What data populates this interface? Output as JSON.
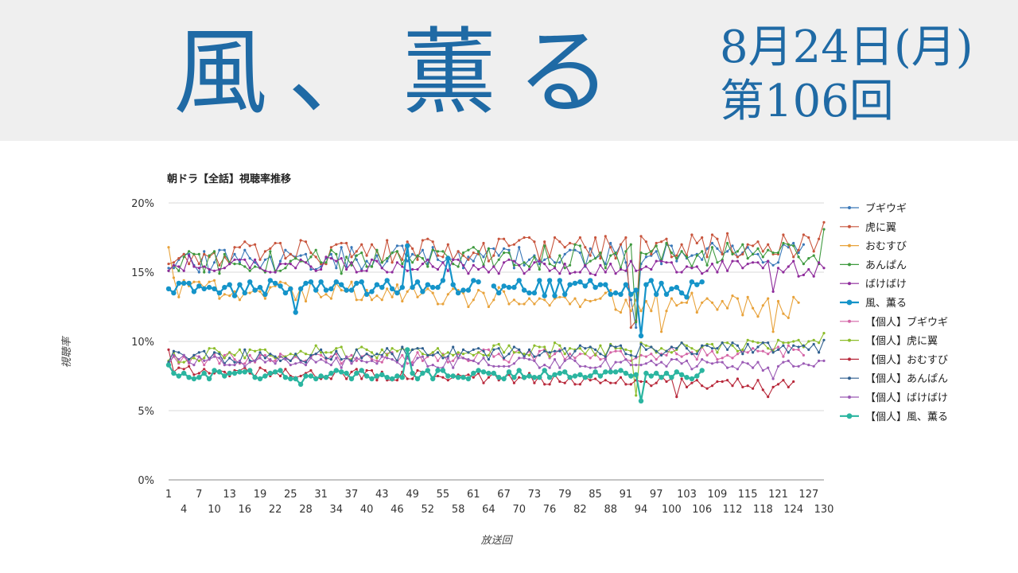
{
  "header": {
    "drama_title": "風、薫る",
    "air_date": "8月24日(月)",
    "episode": "第106回"
  },
  "chart_data": {
    "type": "line",
    "title": "朝ドラ【全話】視聴率推移",
    "xlabel": "放送回",
    "ylabel": "視聴率",
    "ylim": [
      0,
      20
    ],
    "yticks": [
      "0%",
      "5%",
      "10%",
      "15%",
      "20%"
    ],
    "xticks_top": [
      "1",
      "7",
      "13",
      "19",
      "25",
      "31",
      "37",
      "43",
      "49",
      "55",
      "61",
      "67",
      "73",
      "79",
      "85",
      "91",
      "97",
      "103",
      "109",
      "115",
      "121",
      "127"
    ],
    "xticks_bottom": [
      "4",
      "10",
      "16",
      "22",
      "28",
      "34",
      "40",
      "46",
      "52",
      "58",
      "64",
      "70",
      "76",
      "82",
      "88",
      "94",
      "100",
      "106",
      "112",
      "118",
      "124",
      "130"
    ],
    "legend_position": "right",
    "series": [
      {
        "name": "ブギウギ",
        "color": "#3a78b8",
        "length": 126,
        "base": 15.8,
        "trend": 0.6,
        "noise": 0.9,
        "seed": 11,
        "dips": {
          "92": 13.0,
          "93": 11.0
        }
      },
      {
        "name": "虎に翼",
        "color": "#c8553d",
        "length": 130,
        "base": 16.3,
        "trend": 0.7,
        "noise": 0.9,
        "seed": 23,
        "dips": {
          "92": 11.0,
          "93": 11.5
        },
        "last": 18.6
      },
      {
        "name": "おむすび",
        "color": "#e8a23a",
        "length": 125,
        "base": 14.0,
        "trend": -1.6,
        "noise": 0.8,
        "seed": 37,
        "dips": {
          "98": 10.7,
          "120": 10.7
        },
        "first": 16.8
      },
      {
        "name": "あんぱん",
        "color": "#3f9a3f",
        "length": 130,
        "base": 15.6,
        "trend": 0.8,
        "noise": 0.9,
        "seed": 41,
        "dips": {
          "93": 11.4
        },
        "last": 18.1
      },
      {
        "name": "ばけばけ",
        "color": "#8e2a9b",
        "length": 130,
        "base": 15.6,
        "trend": -0.4,
        "noise": 0.6,
        "seed": 53,
        "dips": {
          "120": 13.6
        }
      },
      {
        "name": "風、薫る",
        "color": "#1594c9",
        "length": 106,
        "base": 13.9,
        "trend": -0.1,
        "noise": 0.6,
        "seed": 67,
        "bold": true,
        "dips": {
          "26": 12.1,
          "94": 10.4
        },
        "peaks": {
          "48": 16.9,
          "56": 16.0
        },
        "gaps": [
          63,
          64
        ]
      },
      {
        "name": "【個人】ブギウギ",
        "color": "#d465a6",
        "length": 126,
        "base": 8.7,
        "trend": 0.5,
        "noise": 0.5,
        "seed": 71
      },
      {
        "name": "【個人】虎に翼",
        "color": "#8cbd2a",
        "length": 130,
        "base": 9.0,
        "trend": 0.7,
        "noise": 0.5,
        "seed": 83,
        "dips": {
          "93": 6.1
        },
        "last": 10.6
      },
      {
        "name": "【個人】おむすび",
        "color": "#b8283a",
        "length": 124,
        "base": 7.9,
        "trend": -1.1,
        "noise": 0.4,
        "seed": 97,
        "first": 9.4,
        "dips": {
          "101": 6.0,
          "119": 6.0
        }
      },
      {
        "name": "【個人】あんぱん",
        "color": "#2f5f8f",
        "length": 130,
        "base": 8.8,
        "trend": 0.8,
        "noise": 0.5,
        "seed": 101,
        "last": 10.1
      },
      {
        "name": "【個人】ばけばけ",
        "color": "#9b5bb5",
        "length": 130,
        "base": 8.6,
        "trend": -0.3,
        "noise": 0.4,
        "seed": 113,
        "dips": {
          "120": 7.3
        }
      },
      {
        "name": "【個人】風、薫る",
        "color": "#2bb5a0",
        "length": 106,
        "base": 7.6,
        "trend": 0.0,
        "noise": 0.35,
        "seed": 127,
        "bold": true,
        "first": 8.3,
        "dips": {
          "27": 6.9,
          "94": 5.7
        },
        "peaks": {
          "48": 9.4
        }
      }
    ]
  }
}
